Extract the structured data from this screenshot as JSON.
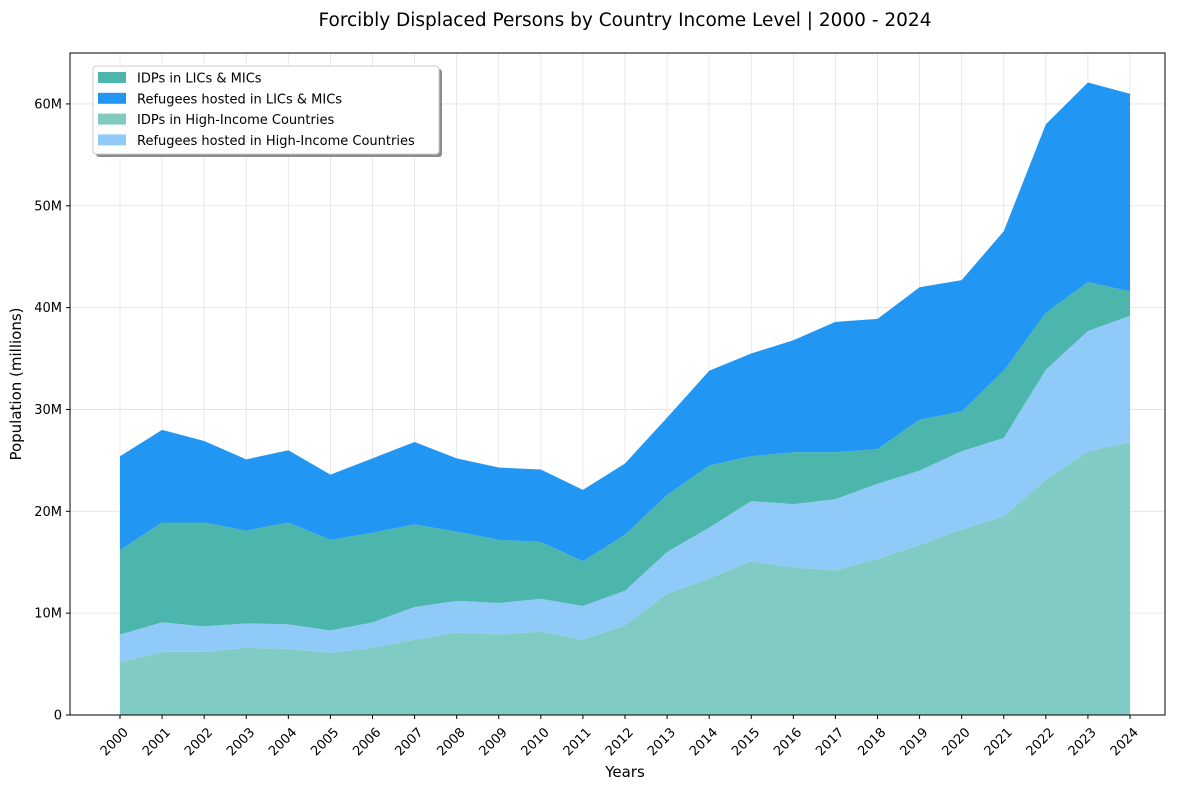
{
  "chart_data": {
    "type": "area",
    "stacked": true,
    "title": "Forcibly Displaced Persons by Country Income Level | 2000 - 2024",
    "xlabel": "Years",
    "ylabel": "Population (millions)",
    "x": [
      "2000",
      "2001",
      "2002",
      "2003",
      "2004",
      "2005",
      "2006",
      "2007",
      "2008",
      "2009",
      "2010",
      "2011",
      "2012",
      "2013",
      "2014",
      "2015",
      "2016",
      "2017",
      "2018",
      "2019",
      "2020",
      "2021",
      "2022",
      "2023",
      "2024"
    ],
    "ylim": [
      0,
      65
    ],
    "yticks": [
      0,
      10,
      20,
      30,
      40,
      50,
      60
    ],
    "ytick_labels": [
      "0",
      "10M",
      "20M",
      "30M",
      "40M",
      "50M",
      "60M"
    ],
    "grid": true,
    "legend_position": "top-left",
    "series": [
      {
        "name": "IDPs in High-Income Countries",
        "color": "#80cbc4",
        "values": [
          5.2,
          6.2,
          6.2,
          6.6,
          6.5,
          6.1,
          6.6,
          7.4,
          8.1,
          7.9,
          8.2,
          7.4,
          8.8,
          11.9,
          13.4,
          15.1,
          14.5,
          14.2,
          15.3,
          16.7,
          18.2,
          19.5,
          23.1,
          25.9,
          26.8
        ]
      },
      {
        "name": "Refugees hosted in High-Income Countries",
        "color": "#90caf9",
        "values": [
          2.7,
          2.9,
          2.5,
          2.4,
          2.4,
          2.2,
          2.5,
          3.2,
          3.1,
          3.1,
          3.2,
          3.3,
          3.4,
          4.1,
          5.0,
          5.9,
          6.2,
          7.0,
          7.4,
          7.3,
          7.7,
          7.7,
          10.8,
          11.8,
          12.4
        ]
      },
      {
        "name": "IDPs in LICs & MICs",
        "color": "#4db6ac",
        "values": [
          8.3,
          9.8,
          10.2,
          9.1,
          10.0,
          8.9,
          8.8,
          8.1,
          6.8,
          6.2,
          5.6,
          4.4,
          5.5,
          5.6,
          6.1,
          4.4,
          5.1,
          4.6,
          3.4,
          5.0,
          3.9,
          6.6,
          5.6,
          4.8,
          2.4
        ]
      },
      {
        "name": "Refugees hosted in LICs & MICs",
        "color": "#2196f3",
        "values": [
          9.2,
          9.1,
          8.0,
          7.0,
          7.1,
          6.4,
          7.3,
          8.1,
          7.2,
          7.1,
          7.1,
          7.0,
          7.0,
          7.6,
          9.3,
          10.1,
          11.0,
          12.8,
          12.8,
          13.0,
          12.9,
          13.7,
          18.5,
          19.6,
          19.4
        ]
      }
    ],
    "legend": [
      {
        "label": "IDPs in LICs & MICs",
        "color": "#4db6ac"
      },
      {
        "label": "Refugees hosted in LICs & MICs",
        "color": "#2196f3"
      },
      {
        "label": "IDPs in High-Income Countries",
        "color": "#80cbc4"
      },
      {
        "label": "Refugees hosted in High-Income Countries",
        "color": "#90caf9"
      }
    ]
  }
}
